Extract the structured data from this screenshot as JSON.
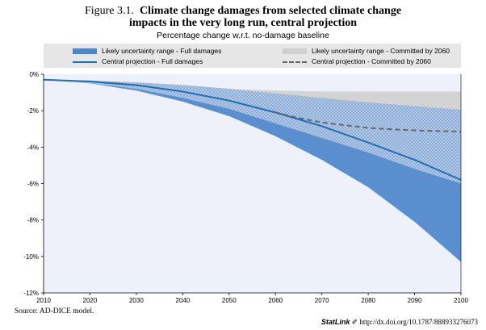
{
  "figure": {
    "label": "Figure 3.1.",
    "title_line1": "Climate change damages from selected climate change",
    "title_line2": "impacts in the very long run, central projection",
    "subtitle": "Percentage change w.r.t. no-damage baseline"
  },
  "legend": {
    "band_full": "Likely uncertainty range - Full damages",
    "line_full": "Central projection - Full damages",
    "band_committed": "Likely uncertainty range - Committed by 2060",
    "line_committed": "Central projection - Committed by 2060"
  },
  "source": "Source:  AD-DICE model.",
  "statlink": {
    "brand": "StatLink",
    "url": "http://dx.doi.org/10.1787/888933276073"
  },
  "colors": {
    "band_full": "#4f86c6",
    "band_full_lower": "#5a8fcf",
    "band_committed": "#d3d3d3",
    "line_full": "#1f6fb2",
    "line_committed": "#666666",
    "plot_bg": "#eef1fa"
  },
  "chart_data": {
    "type": "area",
    "xlim": [
      2010,
      2100
    ],
    "ylim": [
      -12,
      0
    ],
    "x_ticks": [
      2010,
      2020,
      2030,
      2040,
      2050,
      2060,
      2070,
      2080,
      2090,
      2100
    ],
    "x_tick_labels": [
      "2010",
      "2020",
      "2030",
      "2040",
      "2050",
      "2060",
      "2070",
      "2080",
      "2090",
      "2100"
    ],
    "y_ticks": [
      0,
      -2,
      -4,
      -6,
      -8,
      -10,
      -12
    ],
    "y_tick_labels": [
      "0%",
      "-2%",
      "-4%",
      "-6%",
      "-8%",
      "-10%",
      "-12%"
    ],
    "x": [
      2010,
      2020,
      2030,
      2040,
      2050,
      2060,
      2070,
      2080,
      2090,
      2100
    ],
    "series": [
      {
        "name": "Likely uncertainty range - Full damages",
        "kind": "band",
        "upper": [
          -0.3,
          -0.35,
          -0.45,
          -0.6,
          -0.8,
          -1.05,
          -1.3,
          -1.55,
          -1.75,
          -1.95
        ],
        "lower": [
          -0.3,
          -0.5,
          -0.9,
          -1.5,
          -2.3,
          -3.4,
          -4.7,
          -6.2,
          -8.1,
          -10.3
        ]
      },
      {
        "name": "Likely uncertainty range - Committed by 2060",
        "kind": "band",
        "upper": [
          -0.3,
          -0.35,
          -0.45,
          -0.6,
          -0.8,
          -0.9,
          -0.95,
          -0.95,
          -0.95,
          -0.95
        ],
        "lower": [
          -0.3,
          -0.5,
          -0.8,
          -1.3,
          -1.9,
          -2.7,
          -3.5,
          -4.3,
          -5.2,
          -6.0
        ]
      },
      {
        "name": "Central projection - Full damages",
        "kind": "line",
        "values": [
          -0.3,
          -0.4,
          -0.6,
          -0.95,
          -1.45,
          -2.1,
          -2.85,
          -3.75,
          -4.7,
          -5.8
        ]
      },
      {
        "name": "Central projection - Committed by 2060",
        "kind": "dashed",
        "x": [
          2060,
          2065,
          2070,
          2075,
          2080,
          2085,
          2090,
          2095,
          2100
        ],
        "values": [
          -2.1,
          -2.4,
          -2.65,
          -2.8,
          -2.95,
          -3.02,
          -3.08,
          -3.12,
          -3.15
        ]
      }
    ]
  }
}
